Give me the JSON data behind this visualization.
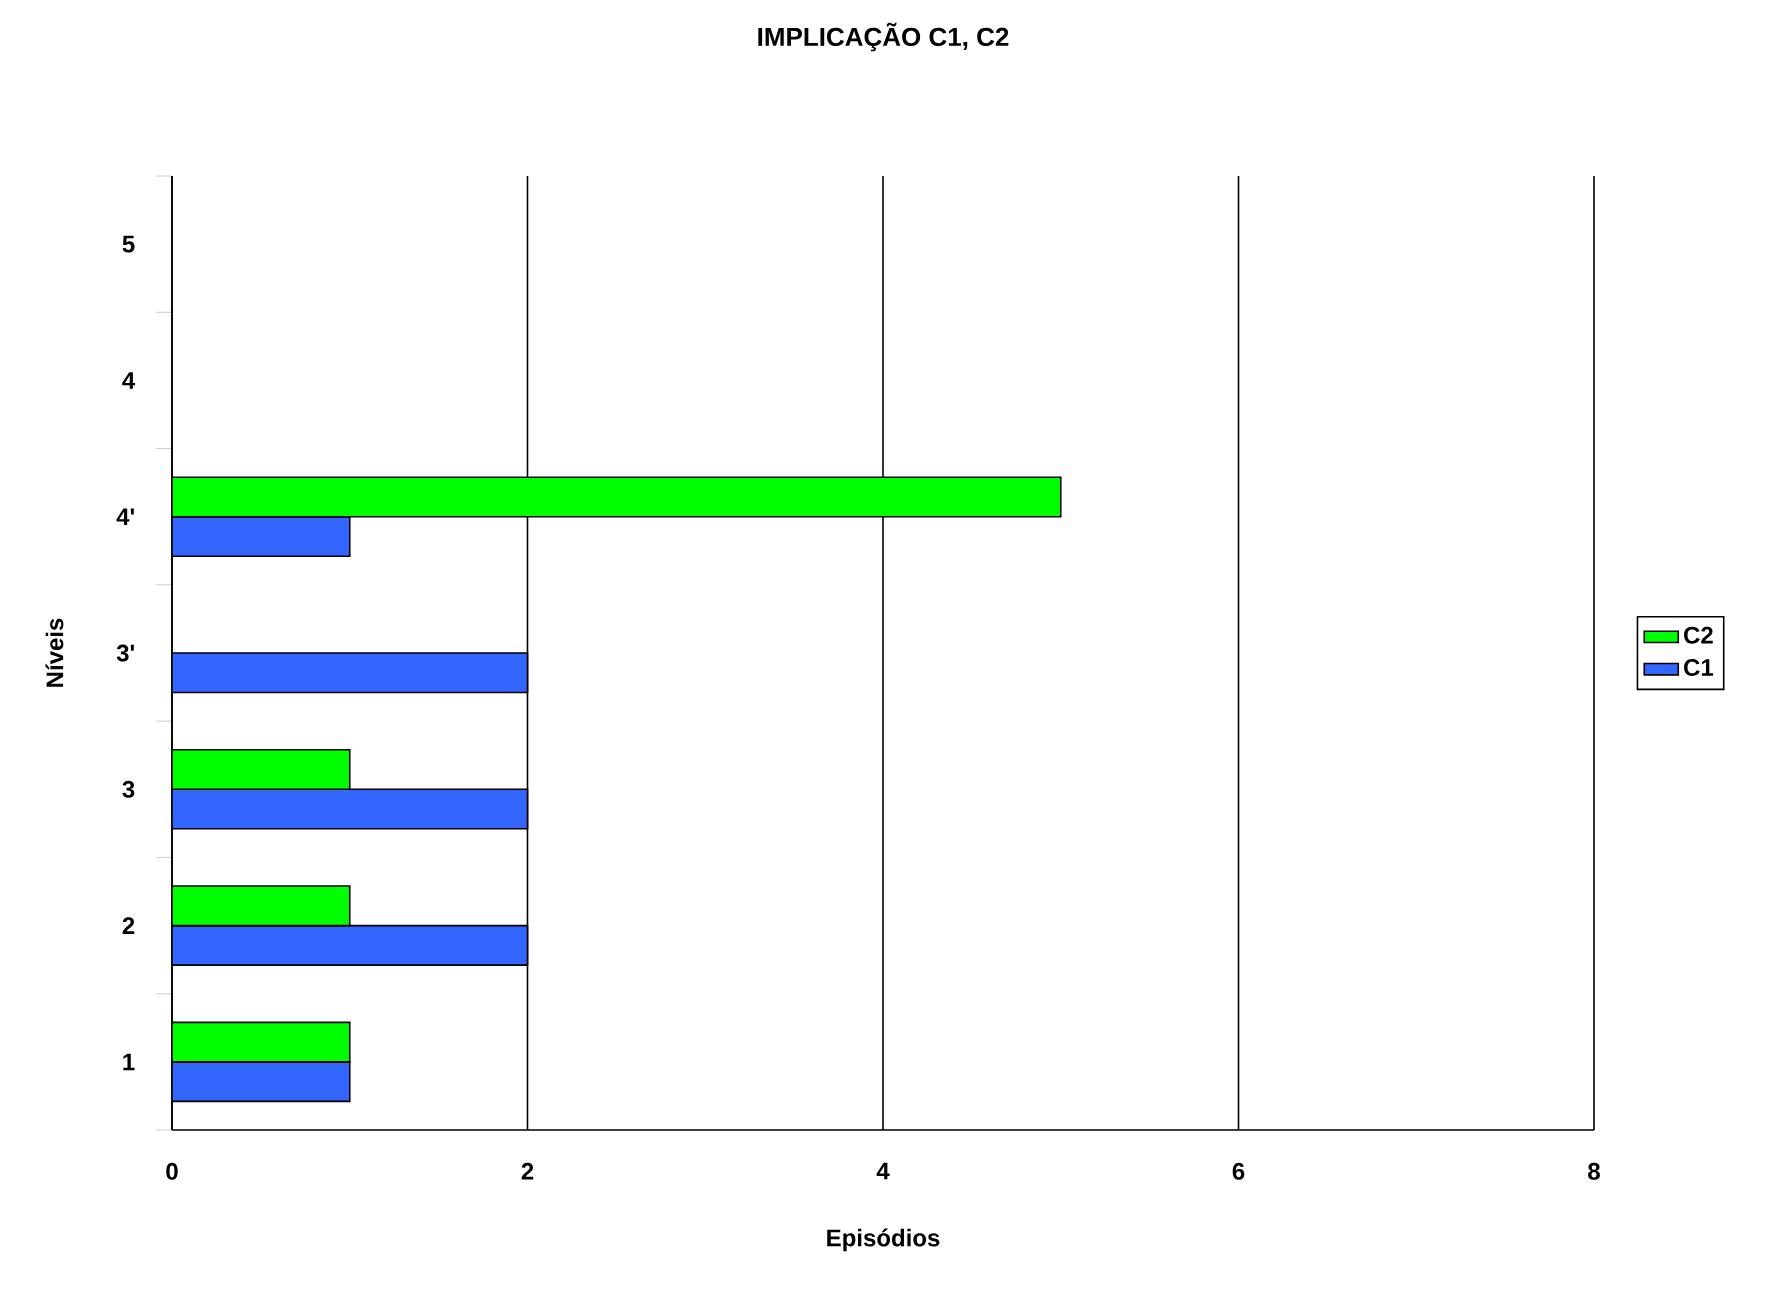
{
  "chart_data": {
    "type": "bar",
    "orientation": "horizontal",
    "title": "IMPLICAÇÃO C1, C2",
    "xlabel": "Episódios",
    "ylabel": "Níveis",
    "categories": [
      "5",
      "4",
      "4'",
      "3'",
      "3",
      "2",
      "1"
    ],
    "series": [
      {
        "name": "C1",
        "color": "#3366ff",
        "values": [
          null,
          null,
          1,
          2,
          2,
          2,
          1
        ]
      },
      {
        "name": "C2",
        "color": "#00ff00",
        "values": [
          null,
          null,
          5,
          null,
          1,
          1,
          1
        ]
      }
    ],
    "xlim": [
      0,
      8
    ],
    "xticks": [
      0,
      2,
      4,
      6,
      8
    ],
    "grid": "x",
    "legend": "right"
  }
}
